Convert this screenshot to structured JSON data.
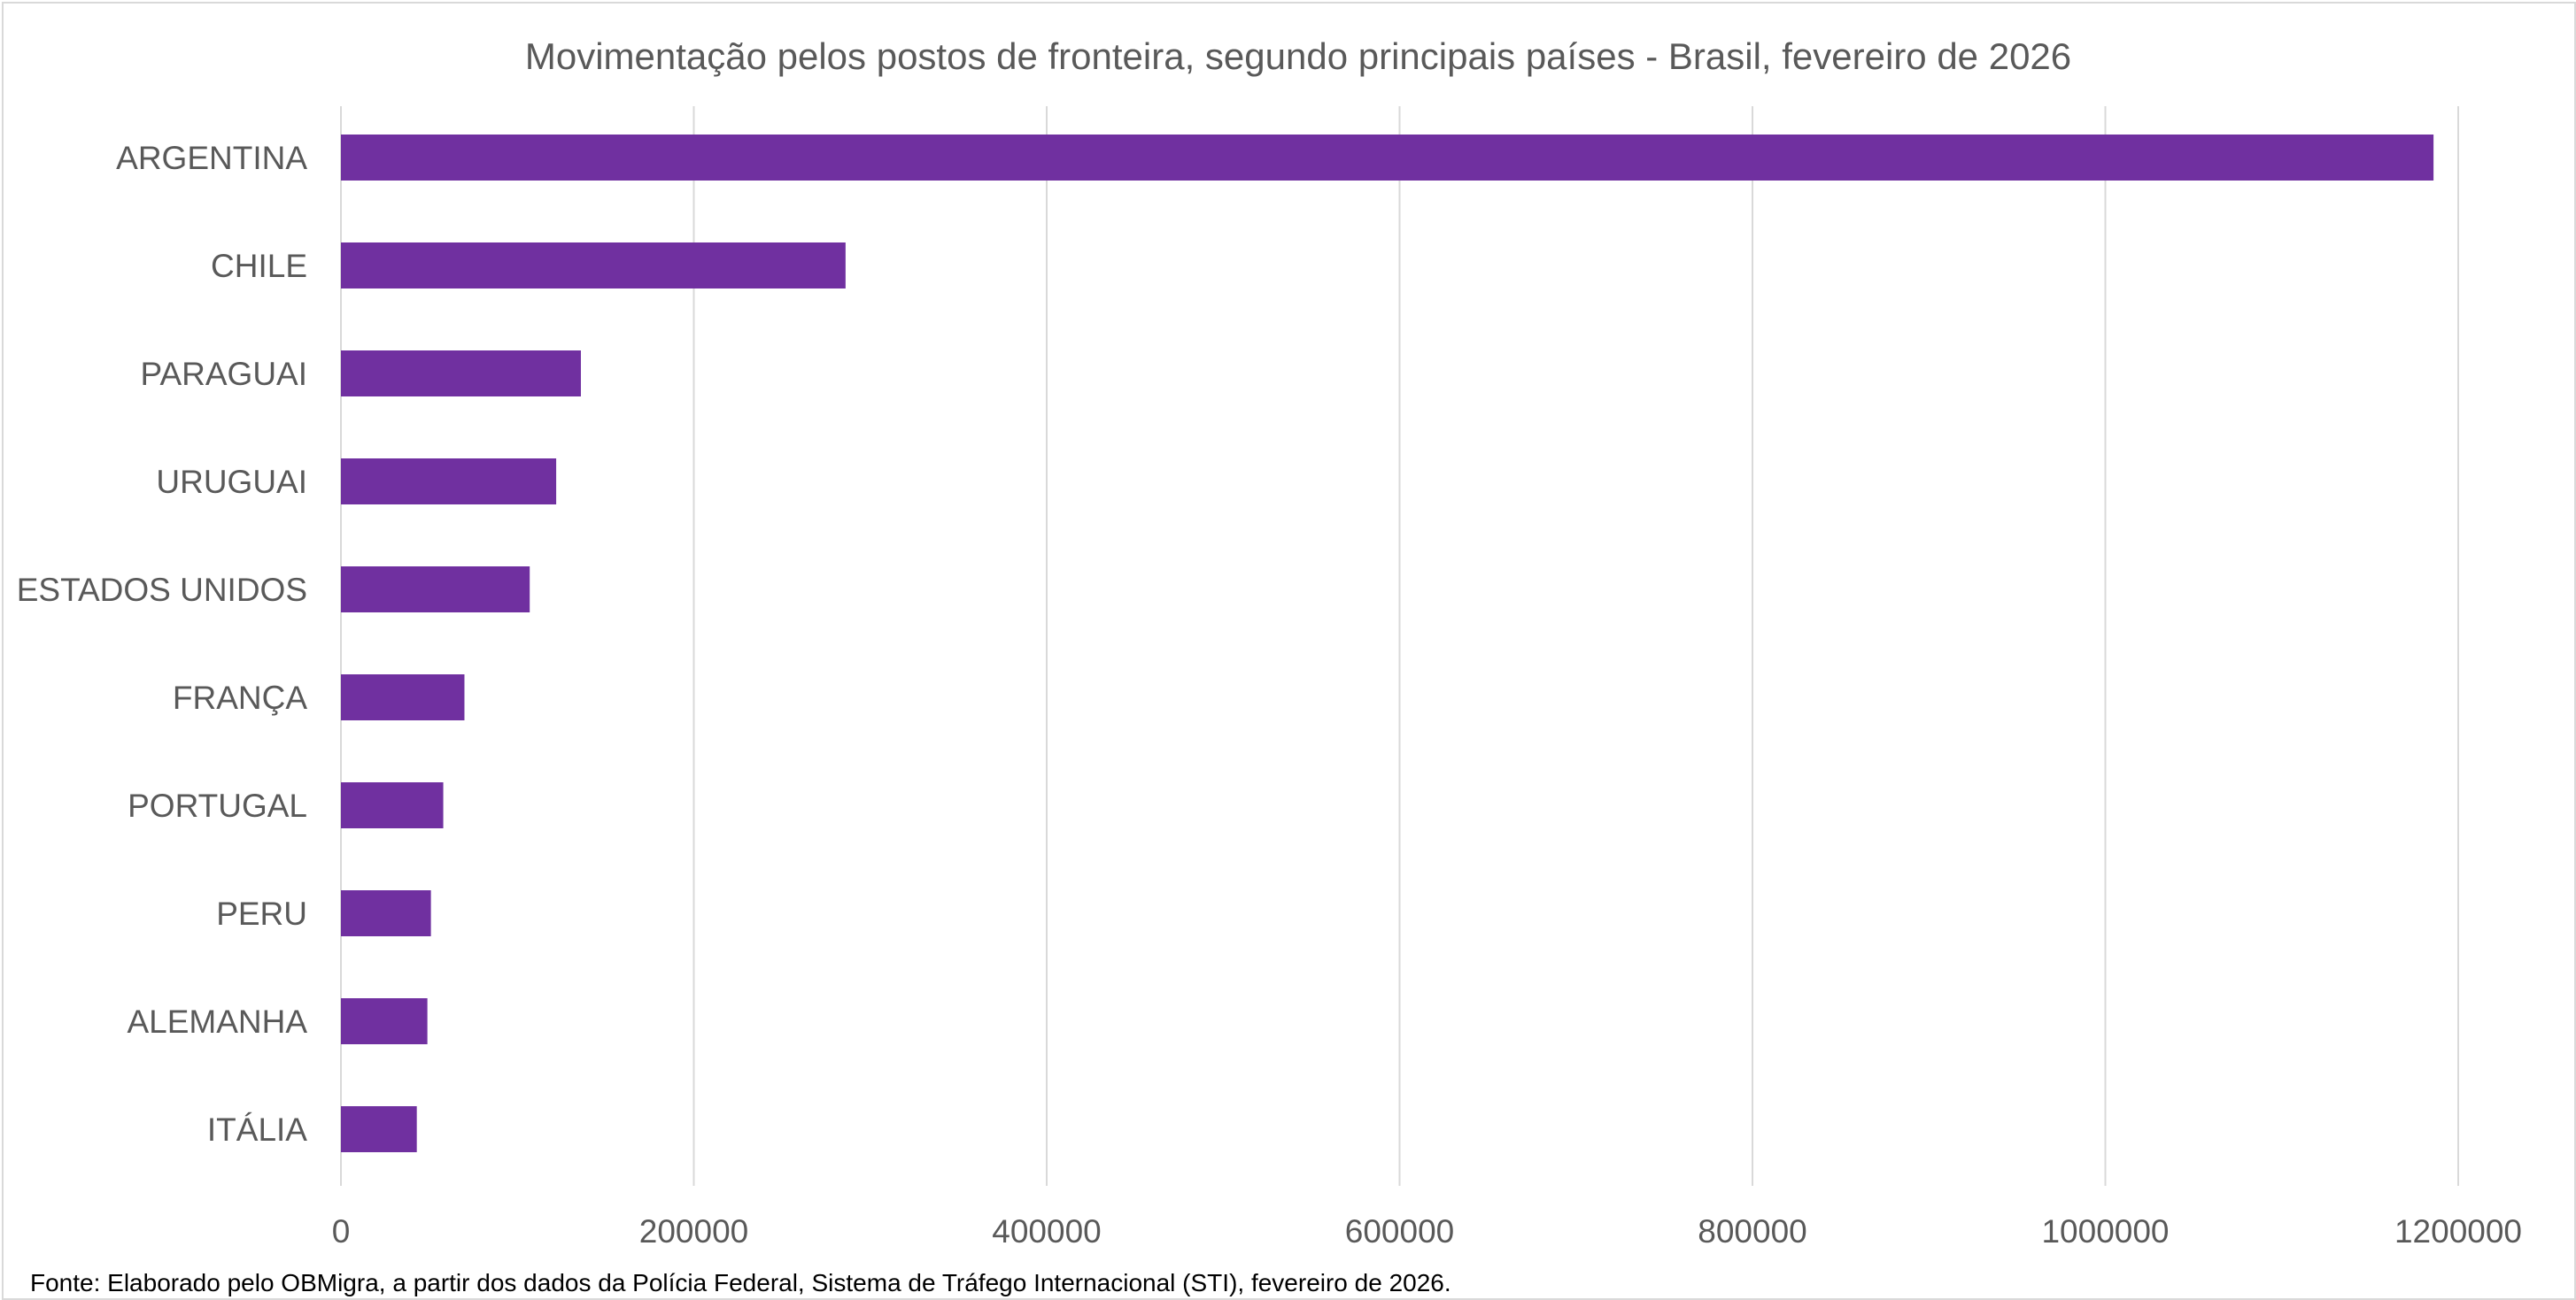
{
  "chart_data": {
    "type": "bar",
    "orientation": "horizontal",
    "title": "Movimentação pelos postos de fronteira, segundo principais países - Brasil, fevereiro de 2026",
    "categories": [
      "ARGENTINA",
      "CHILE",
      "PARAGUAI",
      "URUGUAI",
      "ESTADOS UNIDOS",
      "FRANÇA",
      "PORTUGAL",
      "PERU",
      "ALEMANHA",
      "ITÁLIA"
    ],
    "values": [
      1186000,
      286000,
      136000,
      122000,
      107000,
      70000,
      58000,
      51000,
      49000,
      43000
    ],
    "xlim": [
      0,
      1200000
    ],
    "x_ticks": [
      "0",
      "200000",
      "400000",
      "600000",
      "800000",
      "1000000",
      "1200000"
    ],
    "x_tick_values": [
      0,
      200000,
      400000,
      600000,
      800000,
      1000000,
      1200000
    ],
    "grid": "vertical",
    "legend": "none",
    "bar_color": "#7030a0",
    "grid_color": "#d9d9d9"
  },
  "source_note": "Fonte: Elaborado pelo OBMigra,  a partir dos dados da Polícia Federal, Sistema de Tráfego Internacional (STI), fevereiro de 2026."
}
